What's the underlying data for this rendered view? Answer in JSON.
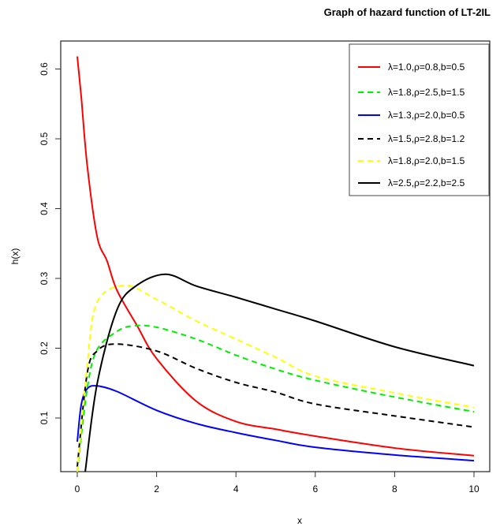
{
  "chart_data": {
    "type": "line",
    "title": "Graph of hazard function of LT-2IL",
    "xlabel": "x",
    "ylabel": "h(x)",
    "xlim": [
      -0.5,
      10.4
    ],
    "ylim": [
      0.023,
      0.64
    ],
    "xticks": [
      "0",
      "2",
      "4",
      "6",
      "8",
      "10"
    ],
    "xtick_values": [
      0,
      2,
      4,
      6,
      8,
      10
    ],
    "yticks": [
      "0.1",
      "0.2",
      "0.3",
      "0.4",
      "0.5",
      "0.6"
    ],
    "ytick_values": [
      0.1,
      0.2,
      0.3,
      0.4,
      0.5,
      0.6
    ],
    "grid": false,
    "legend_position": "top-right",
    "series": [
      {
        "name": "λ=1.0,ρ=0.8,b=0.5",
        "color": "#ff0000",
        "dashed": false,
        "x": [
          0,
          0.1,
          0.25,
          0.5,
          0.75,
          1,
          1.5,
          2,
          3,
          4,
          5,
          6,
          8,
          10
        ],
        "y": [
          0.618,
          0.56,
          0.462,
          0.36,
          0.325,
          0.283,
          0.233,
          0.185,
          0.124,
          0.095,
          0.084,
          0.074,
          0.057,
          0.046
        ]
      },
      {
        "name": "λ=1.8,ρ=2.5,b=1.5",
        "color": "#00ee00",
        "dashed": true,
        "x": [
          0,
          0.25,
          0.5,
          1,
          1.4,
          2,
          3,
          4,
          5,
          6,
          8,
          10
        ],
        "y": [
          0.023,
          0.142,
          0.198,
          0.224,
          0.232,
          0.23,
          0.213,
          0.19,
          0.17,
          0.154,
          0.13,
          0.109
        ]
      },
      {
        "name": "λ=1.3,ρ=2.0,b=0.5",
        "color": "#0000ff",
        "dashed": false,
        "x": [
          0,
          0.1,
          0.25,
          0.5,
          1,
          2,
          3,
          4,
          5,
          6,
          8,
          10
        ],
        "y": [
          0.066,
          0.119,
          0.142,
          0.146,
          0.138,
          0.111,
          0.092,
          0.079,
          0.068,
          0.058,
          0.047,
          0.039
        ]
      },
      {
        "name": "λ=1.5,ρ=2.8,b=1.2",
        "color": "#000000",
        "dashed": true,
        "x": [
          0,
          0.25,
          0.5,
          0.97,
          2,
          3,
          4,
          5,
          6,
          8,
          10
        ],
        "y": [
          0.03,
          0.164,
          0.196,
          0.206,
          0.196,
          0.171,
          0.151,
          0.137,
          0.12,
          0.103,
          0.087
        ]
      },
      {
        "name": "λ=1.8,ρ=2.0,b=1.5",
        "color": "#ffff00",
        "dashed": true,
        "x": [
          0,
          0.25,
          0.5,
          1.2,
          2,
          3,
          4,
          5,
          6,
          8,
          10
        ],
        "y": [
          0.023,
          0.176,
          0.266,
          0.29,
          0.27,
          0.239,
          0.213,
          0.187,
          0.16,
          0.136,
          0.115
        ]
      },
      {
        "name": "λ=2.5,ρ=2.2,b=2.5",
        "color": "#000000",
        "dashed": false,
        "x": [
          0.2,
          0.5,
          1,
          1.5,
          2.23,
          3,
          4,
          5,
          6,
          8,
          10
        ],
        "y": [
          0.023,
          0.149,
          0.255,
          0.29,
          0.306,
          0.289,
          0.273,
          0.256,
          0.239,
          0.202,
          0.175
        ]
      }
    ]
  }
}
